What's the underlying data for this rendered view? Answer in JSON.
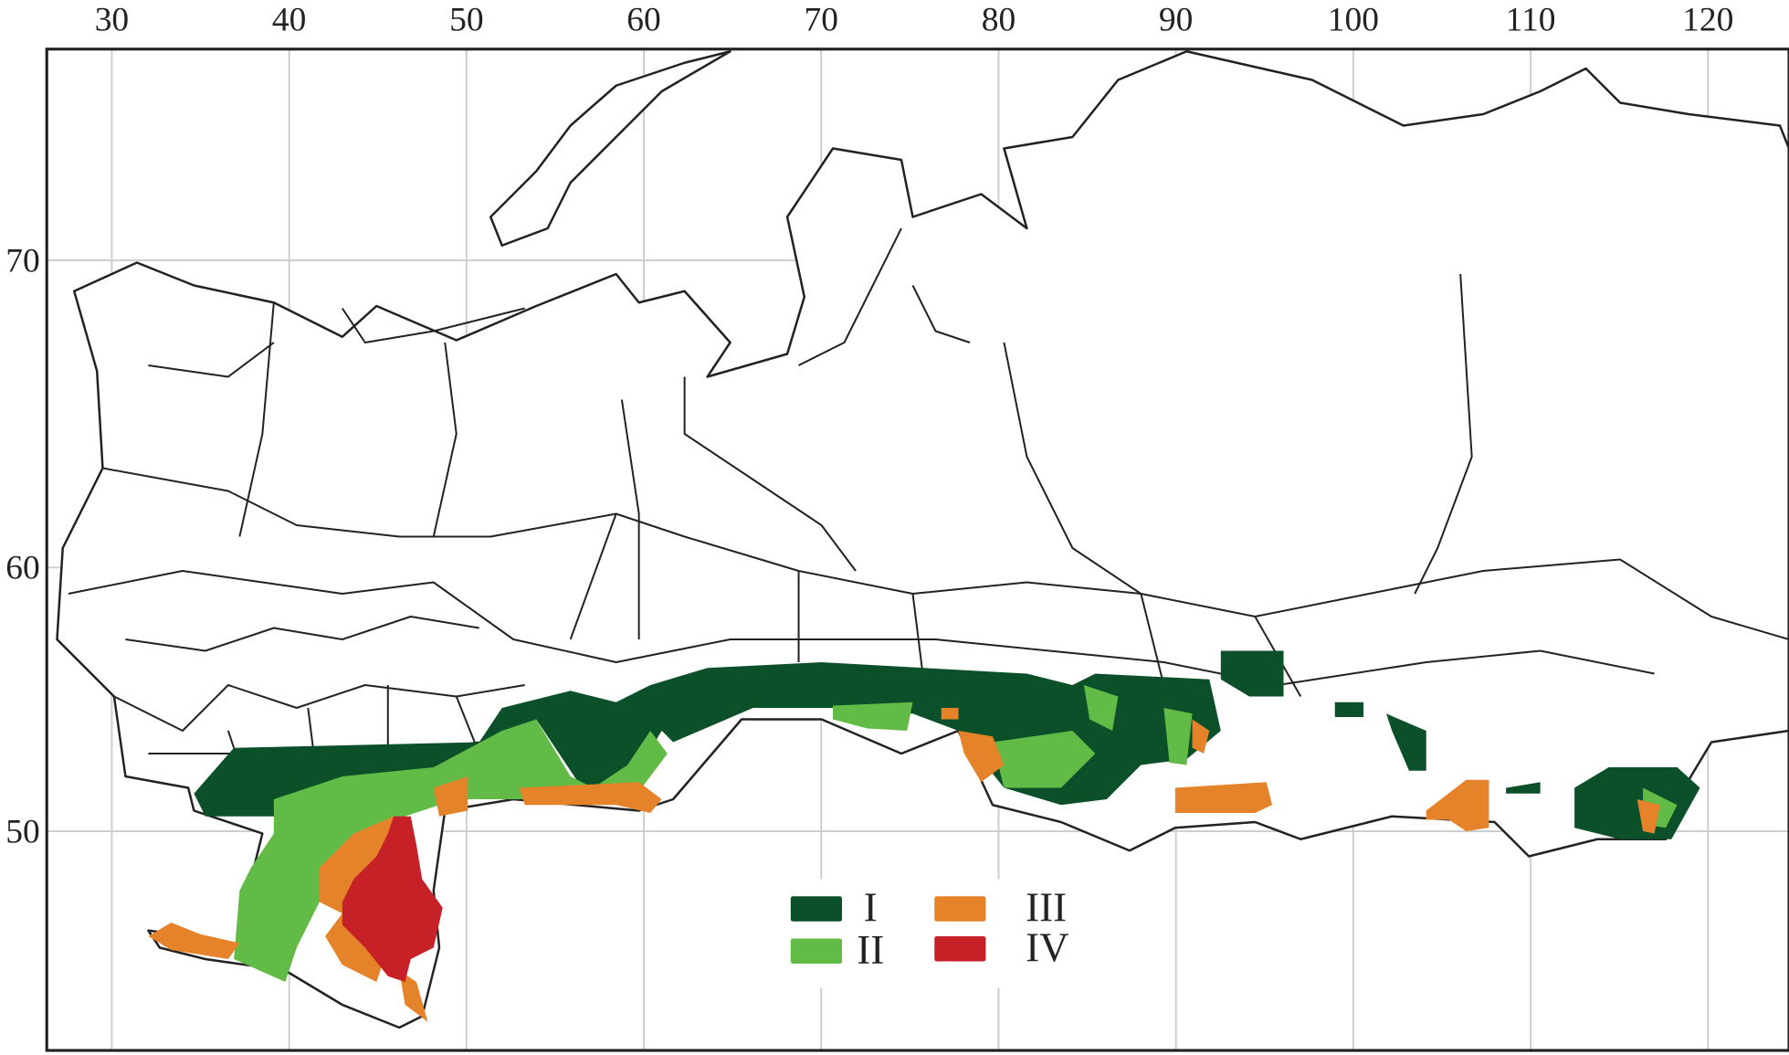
{
  "map": {
    "longitude_ticks": [
      "30",
      "40",
      "50",
      "60",
      "70",
      "80",
      "90",
      "100",
      "110",
      "120"
    ],
    "latitude_ticks": [
      "70",
      "60",
      "50"
    ],
    "grid": true,
    "colors": {
      "background": "#ffffff",
      "boundary": "#222222",
      "grid": "#cccccc"
    }
  },
  "legend": {
    "placement": "bottom-center",
    "items": [
      {
        "label": "I",
        "color": "#0b5028"
      },
      {
        "label": "II",
        "color": "#62bb46"
      },
      {
        "label": "III",
        "color": "#e5832a"
      },
      {
        "label": "IV",
        "color": "#c72128"
      }
    ]
  }
}
